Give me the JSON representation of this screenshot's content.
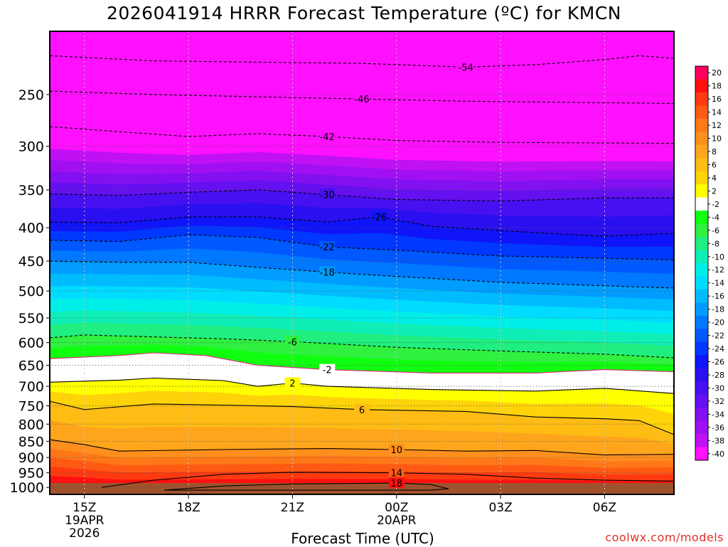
{
  "title": "2026041914 HRRR Forecast Temperature (ºC) for KMCN",
  "credit": "coolwx.com/models",
  "chart_data": {
    "type": "heatmap",
    "title": "2026041914 HRRR Forecast Temperature (ºC) for KMCN",
    "xlabel": "Forecast Time (UTC)",
    "ylabel": "",
    "x_ticks": [
      {
        "hour": 15,
        "lines": [
          "15Z",
          "19APR",
          "2026"
        ]
      },
      {
        "hour": 18,
        "lines": [
          "18Z"
        ]
      },
      {
        "hour": 21,
        "lines": [
          "21Z"
        ]
      },
      {
        "hour": 24,
        "lines": [
          "00Z",
          "20APR"
        ]
      },
      {
        "hour": 27,
        "lines": [
          "03Z"
        ]
      },
      {
        "hour": 30,
        "lines": [
          "06Z"
        ]
      }
    ],
    "x_range_hours": [
      14,
      32
    ],
    "y_ticks_hpa": [
      250,
      300,
      350,
      400,
      450,
      500,
      550,
      600,
      650,
      700,
      750,
      800,
      850,
      900,
      950,
      1000
    ],
    "y_range_hpa": [
      200,
      1025
    ],
    "y_scale": "log-pressure, inverted",
    "grid": true,
    "colorbar": {
      "position": "right",
      "labels": [
        "20",
        "18",
        "16",
        "14",
        "12",
        "10",
        "8",
        "6",
        "4",
        "2",
        "-2",
        "-4",
        "-6",
        "-8",
        "-10",
        "-12",
        "-14",
        "-16",
        "-18",
        "-20",
        "-22",
        "-24",
        "-26",
        "-28",
        "-30",
        "-32",
        "-34",
        "-36",
        "-38",
        "-40"
      ],
      "colors": [
        "#ff0060",
        "#ff1010",
        "#ff3a10",
        "#ff5a14",
        "#ff7818",
        "#ff8f1c",
        "#ffa51c",
        "#ffbc14",
        "#ffd30a",
        "#ffff00",
        "#ffffff",
        "#10ff10",
        "#30f040",
        "#20ee80",
        "#10eeb8",
        "#00eee8",
        "#00dcff",
        "#00bcff",
        "#009cff",
        "#0078ff",
        "#0058ff",
        "#0038ff",
        "#1014f8",
        "#2a10f0",
        "#4610f0",
        "#6410f0",
        "#8210f0",
        "#a010f2",
        "#c010f4",
        "#ff10ff"
      ]
    },
    "isotherms": [
      {
        "label": "-54",
        "points": [
          [
            14,
            218
          ],
          [
            17,
            222
          ],
          [
            20,
            223
          ],
          [
            23,
            224
          ],
          [
            26,
            227
          ],
          [
            28,
            225
          ],
          [
            30,
            221
          ],
          [
            31,
            218
          ],
          [
            32,
            220
          ]
        ]
      },
      {
        "label": "-46",
        "points": [
          [
            14,
            247
          ],
          [
            17,
            250
          ],
          [
            20,
            252
          ],
          [
            23,
            254
          ],
          [
            26,
            256
          ],
          [
            29,
            257
          ],
          [
            32,
            258
          ]
        ]
      },
      {
        "label": "-42",
        "points": [
          [
            14,
            280
          ],
          [
            16,
            285
          ],
          [
            18,
            290
          ],
          [
            20,
            287
          ],
          [
            22,
            290
          ],
          [
            24,
            294
          ],
          [
            27,
            296
          ],
          [
            32,
            297
          ]
        ]
      },
      {
        "label": "-30",
        "points": [
          [
            14,
            355
          ],
          [
            16,
            357
          ],
          [
            18,
            353
          ],
          [
            20,
            350
          ],
          [
            22,
            356
          ],
          [
            24,
            362
          ],
          [
            27,
            364
          ],
          [
            30,
            360
          ],
          [
            32,
            360
          ]
        ]
      },
      {
        "label": "-26",
        "points": [
          [
            14,
            392
          ],
          [
            16,
            393
          ],
          [
            18,
            385
          ],
          [
            20,
            385
          ],
          [
            22,
            392
          ],
          [
            23.5,
            385
          ],
          [
            25,
            398
          ],
          [
            28,
            407
          ],
          [
            30,
            412
          ],
          [
            32,
            408
          ]
        ]
      },
      {
        "label": "-22",
        "points": [
          [
            14,
            418
          ],
          [
            16,
            420
          ],
          [
            18,
            410
          ],
          [
            20,
            414
          ],
          [
            22,
            428
          ],
          [
            24,
            433
          ],
          [
            27,
            442
          ],
          [
            32,
            448
          ]
        ]
      },
      {
        "label": "-18",
        "points": [
          [
            14,
            450
          ],
          [
            16,
            452
          ],
          [
            18,
            452
          ],
          [
            20,
            460
          ],
          [
            22,
            468
          ],
          [
            24,
            475
          ],
          [
            27,
            485
          ],
          [
            32,
            495
          ]
        ]
      },
      {
        "label": "-6",
        "points": [
          [
            14,
            590
          ],
          [
            15,
            584
          ],
          [
            17,
            588
          ],
          [
            19,
            592
          ],
          [
            21,
            598
          ],
          [
            24,
            610
          ],
          [
            27,
            618
          ],
          [
            30,
            625
          ],
          [
            32,
            633
          ]
        ]
      },
      {
        "label": "-2",
        "points": [
          [
            14,
            635
          ],
          [
            16,
            628
          ],
          [
            17,
            622
          ],
          [
            18.5,
            628
          ],
          [
            20,
            650
          ],
          [
            22,
            660
          ],
          [
            25,
            668
          ],
          [
            28,
            668
          ],
          [
            30,
            660
          ],
          [
            32,
            665
          ]
        ]
      },
      {
        "label": "2",
        "points": [
          [
            14,
            690
          ],
          [
            16,
            685
          ],
          [
            17,
            680
          ],
          [
            19,
            686
          ],
          [
            20,
            700
          ],
          [
            21,
            692
          ],
          [
            22,
            700
          ],
          [
            25,
            708
          ],
          [
            28,
            712
          ],
          [
            30,
            705
          ],
          [
            32,
            718
          ]
        ]
      },
      {
        "label": "6",
        "points": [
          [
            14,
            738
          ],
          [
            15,
            760
          ],
          [
            17,
            745
          ],
          [
            19,
            748
          ],
          [
            21,
            752
          ],
          [
            23,
            760
          ],
          [
            26,
            765
          ],
          [
            28,
            780
          ],
          [
            30,
            785
          ],
          [
            31,
            790
          ],
          [
            32,
            830
          ]
        ]
      },
      {
        "label": "10",
        "points": [
          [
            14,
            845
          ],
          [
            15,
            860
          ],
          [
            16,
            880
          ],
          [
            19,
            875
          ],
          [
            22,
            872
          ],
          [
            24,
            875
          ],
          [
            26,
            880
          ],
          [
            28,
            878
          ],
          [
            30,
            892
          ],
          [
            32,
            890
          ]
        ]
      },
      {
        "label": "14",
        "points": [
          [
            15.5,
            1000
          ],
          [
            17,
            975
          ],
          [
            19,
            955
          ],
          [
            21,
            948
          ],
          [
            24,
            950
          ],
          [
            26,
            955
          ],
          [
            28,
            968
          ],
          [
            30,
            975
          ],
          [
            32,
            978
          ]
        ]
      },
      {
        "label": "18",
        "points": [
          [
            17.3,
            1010
          ],
          [
            19,
            995
          ],
          [
            21,
            988
          ],
          [
            24,
            985
          ],
          [
            25,
            990
          ],
          [
            25.5,
            1005
          ],
          [
            25,
            1010
          ]
        ]
      }
    ]
  }
}
